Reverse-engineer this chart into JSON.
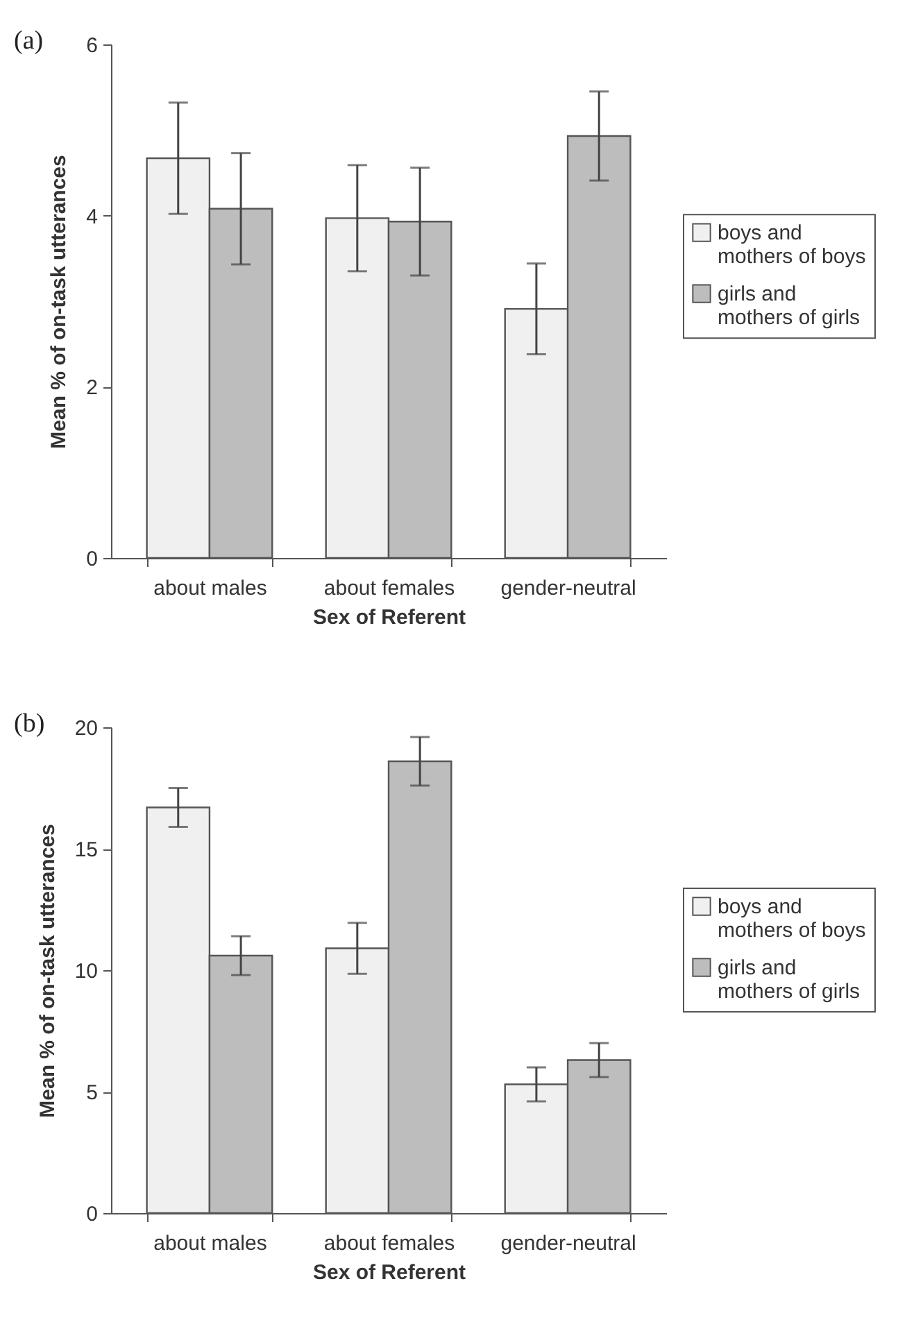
{
  "chart_data": [
    {
      "type": "bar",
      "title": "(a)",
      "xlabel": "Sex of Referent",
      "ylabel": "Mean % of on-task utterances",
      "categories": [
        "about males",
        "about females",
        "gender-neutral"
      ],
      "series": [
        {
          "name": "boys and mothers of boys",
          "color": "#f0f0f0",
          "values": [
            4.67,
            3.97,
            2.91
          ],
          "errors": [
            0.65,
            0.62,
            0.53
          ]
        },
        {
          "name": "girls and mothers of girls",
          "color": "#bdbdbd",
          "values": [
            4.08,
            3.93,
            4.93
          ],
          "errors": [
            0.65,
            0.63,
            0.52
          ]
        }
      ],
      "ylim": [
        0,
        6
      ],
      "yticks": [
        0,
        2,
        4,
        6
      ],
      "grid": false,
      "legend": "right"
    },
    {
      "type": "bar",
      "title": "(b)",
      "xlabel": "Sex of Referent",
      "ylabel": "Mean % of on-task utterances",
      "categories": [
        "about males",
        "about females",
        "gender-neutral"
      ],
      "series": [
        {
          "name": "boys and mothers of boys",
          "color": "#f0f0f0",
          "values": [
            16.7,
            10.9,
            5.3
          ],
          "errors": [
            0.8,
            1.05,
            0.7
          ]
        },
        {
          "name": "girls and mothers of girls",
          "color": "#bdbdbd",
          "values": [
            10.6,
            18.6,
            6.3
          ],
          "errors": [
            0.8,
            1.0,
            0.7
          ]
        }
      ],
      "ylim": [
        0,
        20
      ],
      "yticks": [
        0,
        5,
        10,
        15,
        20
      ],
      "grid": false,
      "legend": "right"
    }
  ]
}
